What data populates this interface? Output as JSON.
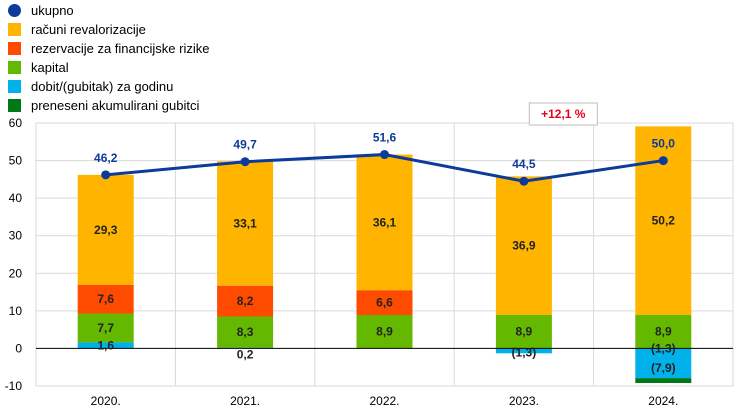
{
  "chart_data": {
    "type": "bar",
    "categories": [
      "2020.",
      "2021.",
      "2022.",
      "2023.",
      "2024."
    ],
    "ylim": [
      -10,
      60
    ],
    "yticks": [
      -10,
      0,
      10,
      20,
      30,
      40,
      50,
      60
    ],
    "grid": true,
    "legend_position": "top-left",
    "legend": [
      {
        "key": "total",
        "label": "ukupno",
        "color": "#0d3b99",
        "kind": "line"
      },
      {
        "key": "revaluation",
        "label": "računi revalorizacije",
        "color": "#ffb400",
        "kind": "bar"
      },
      {
        "key": "provisions",
        "label": "rezervacije za financijske rizike",
        "color": "#ff4b00",
        "kind": "bar"
      },
      {
        "key": "capital",
        "label": "kapital",
        "color": "#65b800",
        "kind": "bar"
      },
      {
        "key": "profit",
        "label": "dobit/(gubitak) za godinu",
        "color": "#00b1ea",
        "kind": "bar"
      },
      {
        "key": "losses",
        "label": "preneseni akumulirani gubitci",
        "color": "#007816",
        "kind": "bar"
      }
    ],
    "series": [
      {
        "key": "profit",
        "name": "dobit/(gubitak) za godinu",
        "values": [
          1.6,
          0.2,
          0,
          -1.3,
          -7.9
        ],
        "labels": [
          "1,6",
          "0,2",
          "",
          "(1,3)",
          "(7,9)"
        ]
      },
      {
        "key": "capital",
        "name": "kapital",
        "values": [
          7.7,
          8.3,
          8.9,
          8.9,
          8.9
        ],
        "labels": [
          "7,7",
          "8,3",
          "8,9",
          "8,9",
          "8,9"
        ]
      },
      {
        "key": "provisions",
        "name": "rezervacije za financijske rizike",
        "values": [
          7.6,
          8.2,
          6.6,
          0,
          0
        ],
        "labels": [
          "7,6",
          "8,2",
          "6,6",
          "",
          ""
        ]
      },
      {
        "key": "revaluation",
        "name": "računi revalorizacije",
        "values": [
          29.3,
          33.1,
          36.1,
          36.9,
          50.2
        ],
        "labels": [
          "29,3",
          "33,1",
          "36,1",
          "36,9",
          "50,2"
        ]
      },
      {
        "key": "losses",
        "name": "preneseni akumulirani gubitci",
        "values": [
          0,
          0,
          0,
          0,
          -1.3
        ],
        "labels": [
          "",
          "",
          "",
          "",
          "(1,3)"
        ]
      }
    ],
    "total": {
      "name": "ukupno",
      "values": [
        46.2,
        49.7,
        51.6,
        44.5,
        50.0
      ],
      "labels": [
        "46,2",
        "49,7",
        "51,6",
        "44,5",
        "50,0"
      ]
    },
    "annotation": {
      "text": "+12,1 %",
      "color": "#e8001c"
    }
  }
}
